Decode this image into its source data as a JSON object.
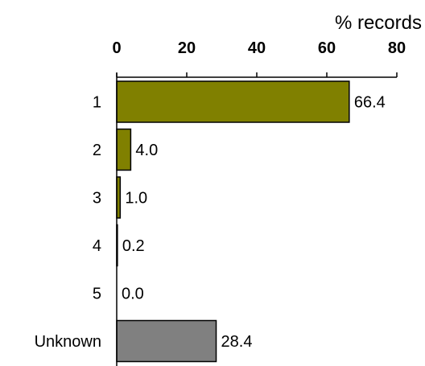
{
  "chart_data": {
    "type": "bar",
    "orientation": "horizontal",
    "title": "",
    "xlabel": "% records",
    "ylabel": "",
    "xlim": [
      0,
      80
    ],
    "x_ticks": [
      0,
      20,
      40,
      60,
      80
    ],
    "x_axis_position": "top",
    "grid": false,
    "legend": "none",
    "categories": [
      "1",
      "2",
      "3",
      "4",
      "5",
      "Unknown"
    ],
    "values": [
      66.4,
      4.0,
      1.0,
      0.2,
      0.0,
      28.4
    ],
    "value_labels": [
      "66.4",
      "4.0",
      "1.0",
      "0.2",
      "0.0",
      "28.4"
    ],
    "bar_colors": [
      "#808000",
      "#808000",
      "#808000",
      "#808000",
      "#808000",
      "#808080"
    ]
  }
}
